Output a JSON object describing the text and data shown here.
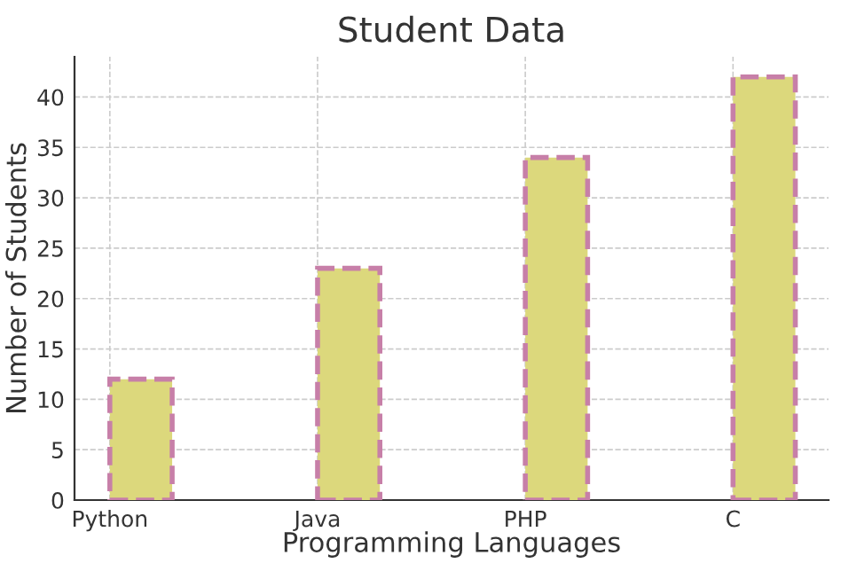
{
  "chart_data": {
    "type": "bar",
    "title": "Student Data",
    "xlabel": "Programming Languages",
    "ylabel": "Number of Students",
    "categories": [
      "Python",
      "Java",
      "PHP",
      "C"
    ],
    "values": [
      12,
      23,
      34,
      42
    ],
    "color": "#dcd87c",
    "ylim": [
      0,
      44
    ],
    "yticks": [
      0,
      5,
      10,
      15,
      20,
      25,
      30,
      35,
      40
    ],
    "grid": true,
    "line_style": "dashed"
  }
}
